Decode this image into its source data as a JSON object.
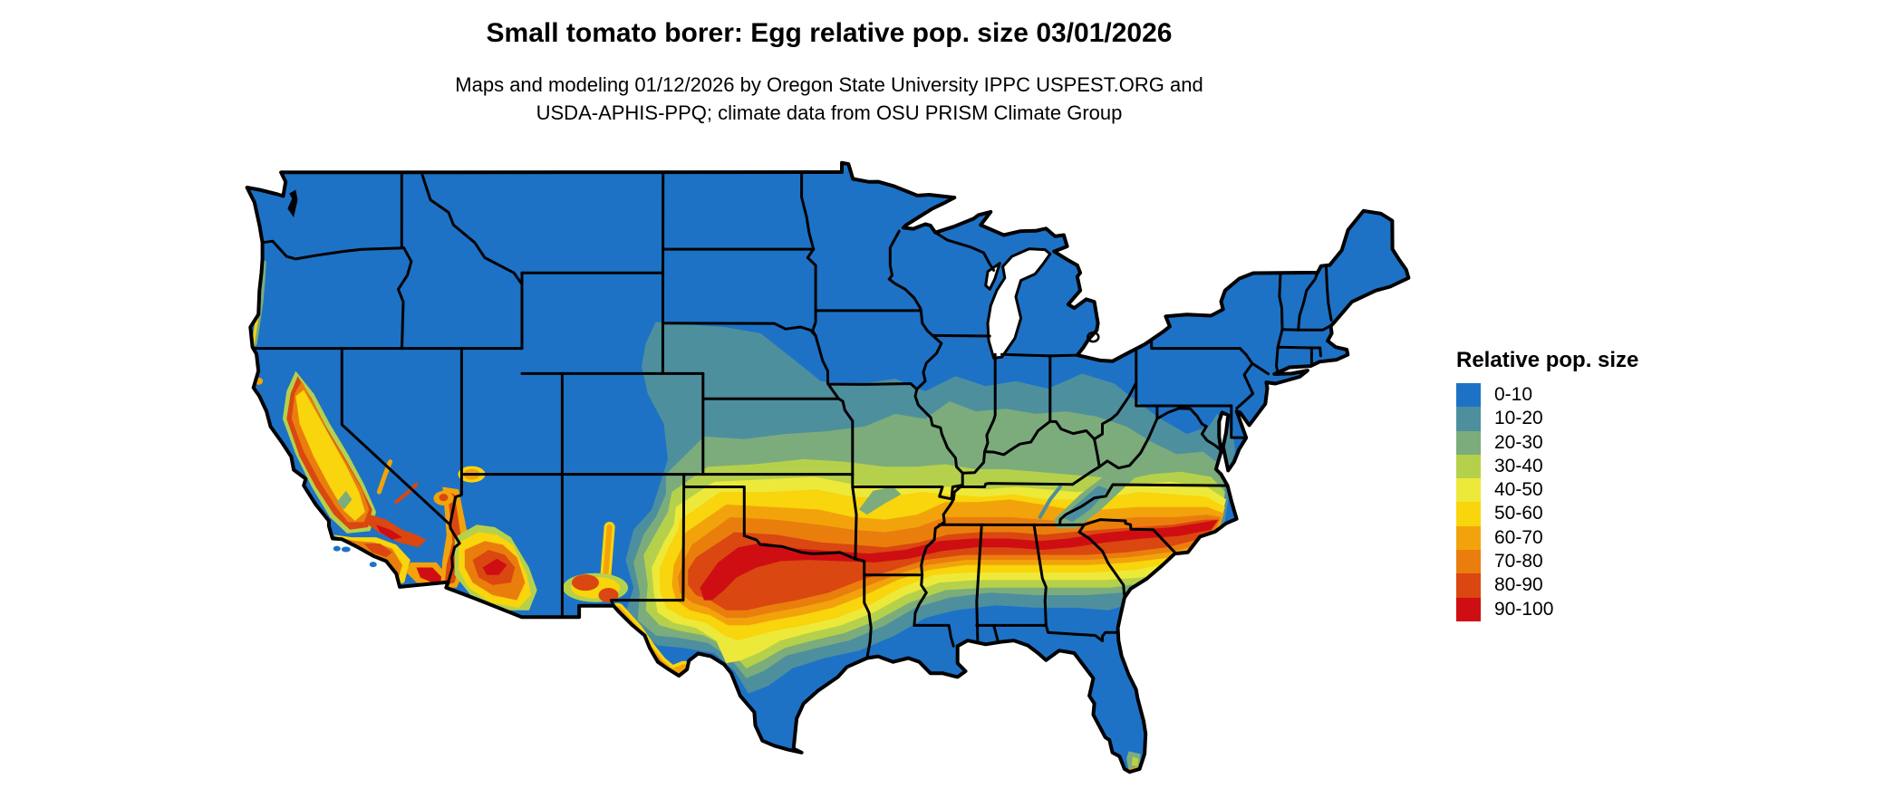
{
  "header": {
    "title": "Small tomato borer: Egg relative pop. size 03/01/2026",
    "subtitle_line1": "Maps and modeling 01/12/2026 by Oregon State University IPPC USPEST.ORG and",
    "subtitle_line2": "USDA-APHIS-PPQ; climate data from OSU PRISM Climate Group"
  },
  "legend": {
    "title": "Relative pop. size",
    "classes": [
      {
        "label": "0-10",
        "color": "#1D72C6"
      },
      {
        "label": "10-20",
        "color": "#4E8F9E"
      },
      {
        "label": "20-30",
        "color": "#7CAC7C"
      },
      {
        "label": "30-40",
        "color": "#B5D14B"
      },
      {
        "label": "40-50",
        "color": "#EDE93A"
      },
      {
        "label": "50-60",
        "color": "#F8D50C"
      },
      {
        "label": "60-70",
        "color": "#F2A30B"
      },
      {
        "label": "70-80",
        "color": "#EA7E0D"
      },
      {
        "label": "80-90",
        "color": "#DA4710"
      },
      {
        "label": "90-100",
        "color": "#CE0E12"
      }
    ]
  },
  "map": {
    "border_color": "#000000",
    "water_color": "#ffffff",
    "base_class": "0-10"
  }
}
